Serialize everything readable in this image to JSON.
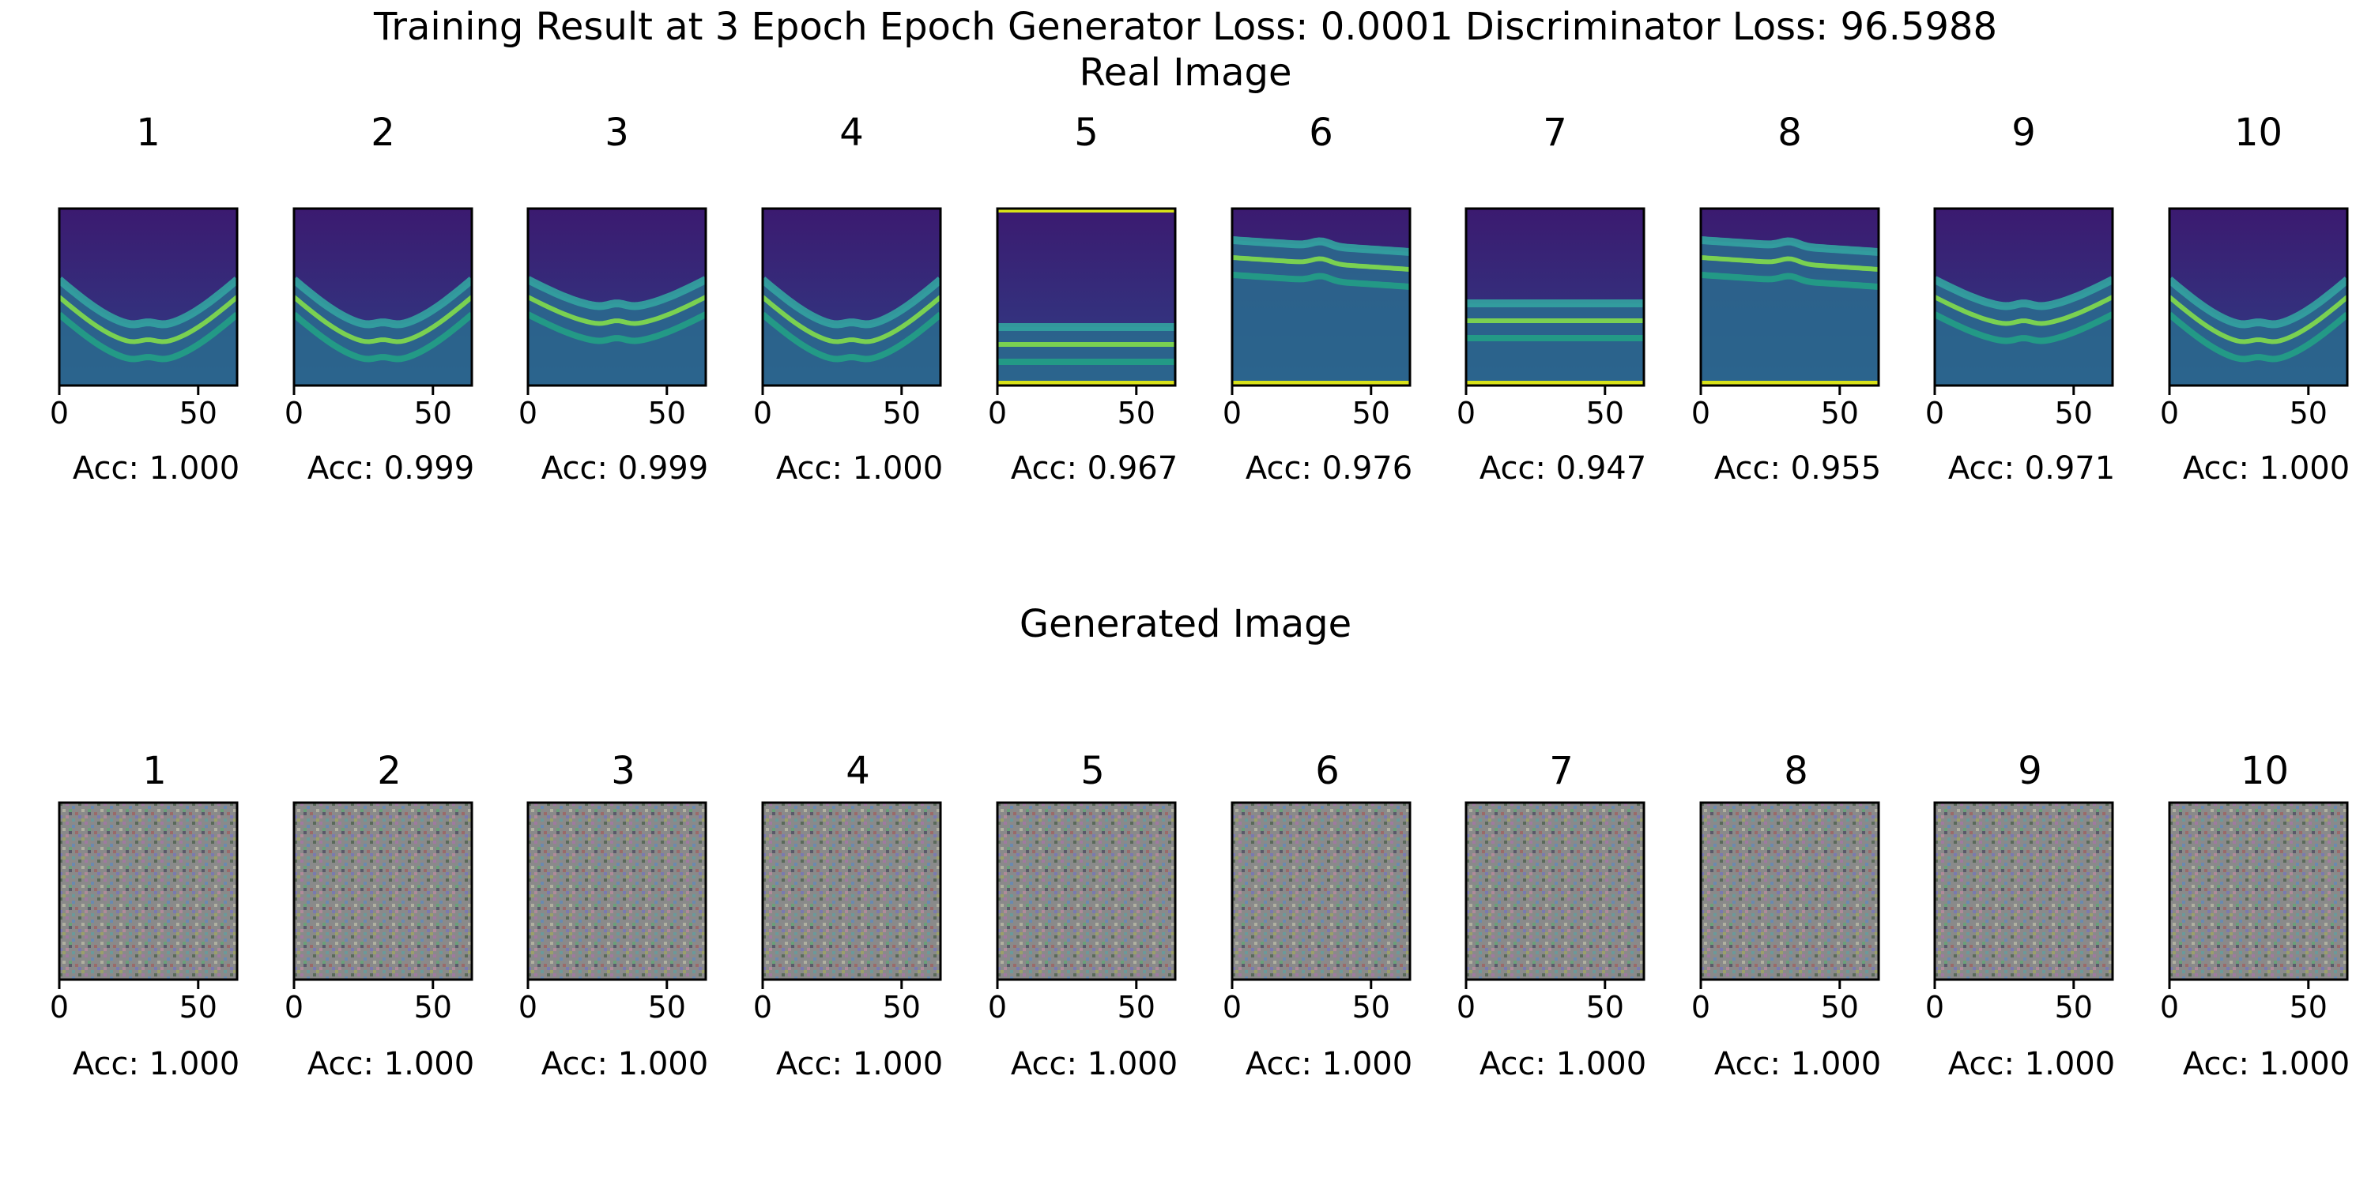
{
  "figure": {
    "title": "Training Result at 3 Epoch Epoch Generator Loss: 0.0001 Discriminator Loss: 96.5988",
    "colors": {
      "viridis_dark": "#440154",
      "viridis_teal": "#21918c",
      "viridis_yellow": "#fde725",
      "noise_gray": "#8a8a8a"
    }
  },
  "real_section": {
    "title": "Real Image",
    "panels": [
      {
        "label": "1",
        "acc": "Acc: 1.000"
      },
      {
        "label": "2",
        "acc": "Acc: 0.999"
      },
      {
        "label": "3",
        "acc": "Acc: 0.999"
      },
      {
        "label": "4",
        "acc": "Acc: 1.000"
      },
      {
        "label": "5",
        "acc": "Acc: 0.967"
      },
      {
        "label": "6",
        "acc": "Acc: 0.976"
      },
      {
        "label": "7",
        "acc": "Acc: 0.947"
      },
      {
        "label": "8",
        "acc": "Acc: 0.955"
      },
      {
        "label": "9",
        "acc": "Acc: 0.971"
      },
      {
        "label": "10",
        "acc": "Acc: 1.000"
      }
    ]
  },
  "generated_section": {
    "title": "Generated Image",
    "panels": [
      {
        "label": "1",
        "acc": "Acc: 1.000"
      },
      {
        "label": "2",
        "acc": "Acc: 1.000"
      },
      {
        "label": "3",
        "acc": "Acc: 1.000"
      },
      {
        "label": "4",
        "acc": "Acc: 1.000"
      },
      {
        "label": "5",
        "acc": "Acc: 1.000"
      },
      {
        "label": "6",
        "acc": "Acc: 1.000"
      },
      {
        "label": "7",
        "acc": "Acc: 1.000"
      },
      {
        "label": "8",
        "acc": "Acc: 1.000"
      },
      {
        "label": "9",
        "acc": "Acc: 1.000"
      },
      {
        "label": "10",
        "acc": "Acc: 1.000"
      }
    ]
  },
  "axis": {
    "x_ticks": [
      "0",
      "50"
    ]
  }
}
